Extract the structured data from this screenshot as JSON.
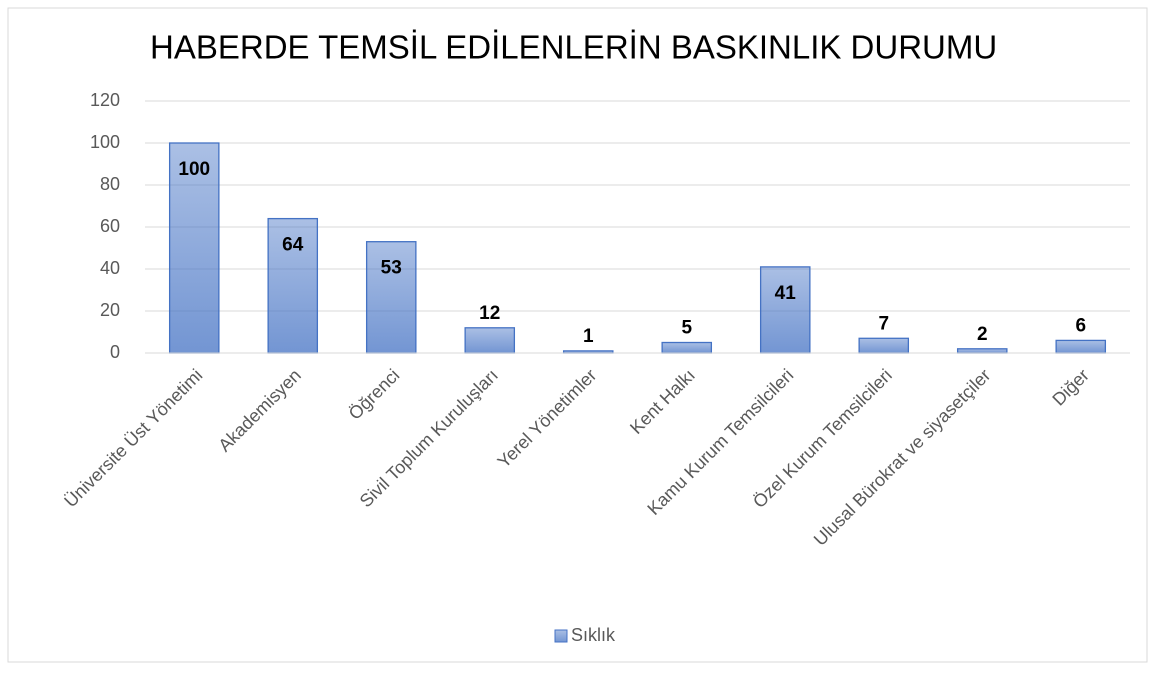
{
  "chart_data": {
    "type": "bar",
    "title": "HABERDE TEMSİL EDİLENLERİN BASKINLIK DURUMU",
    "categories": [
      "Üniversite Üst Yönetimi",
      "Akademisyen",
      "Öğrenci",
      "Sivil Toplum Kuruluşları",
      "Yerel Yönetimler",
      "Kent Halkı",
      "Kamu Kurum Temsilcileri",
      "Özel Kurum Temsilcileri",
      "Ulusal Bürokrat ve siyasetçiler",
      "Diğer"
    ],
    "series": [
      {
        "name": "Sıklık",
        "color": "#4472c4",
        "values": [
          100,
          64,
          53,
          12,
          1,
          5,
          41,
          7,
          2,
          6
        ]
      }
    ],
    "ylim": [
      0,
      120
    ],
    "yticks": [
      0,
      20,
      40,
      60,
      80,
      100,
      120
    ],
    "grid": true,
    "legend": "bottom"
  }
}
